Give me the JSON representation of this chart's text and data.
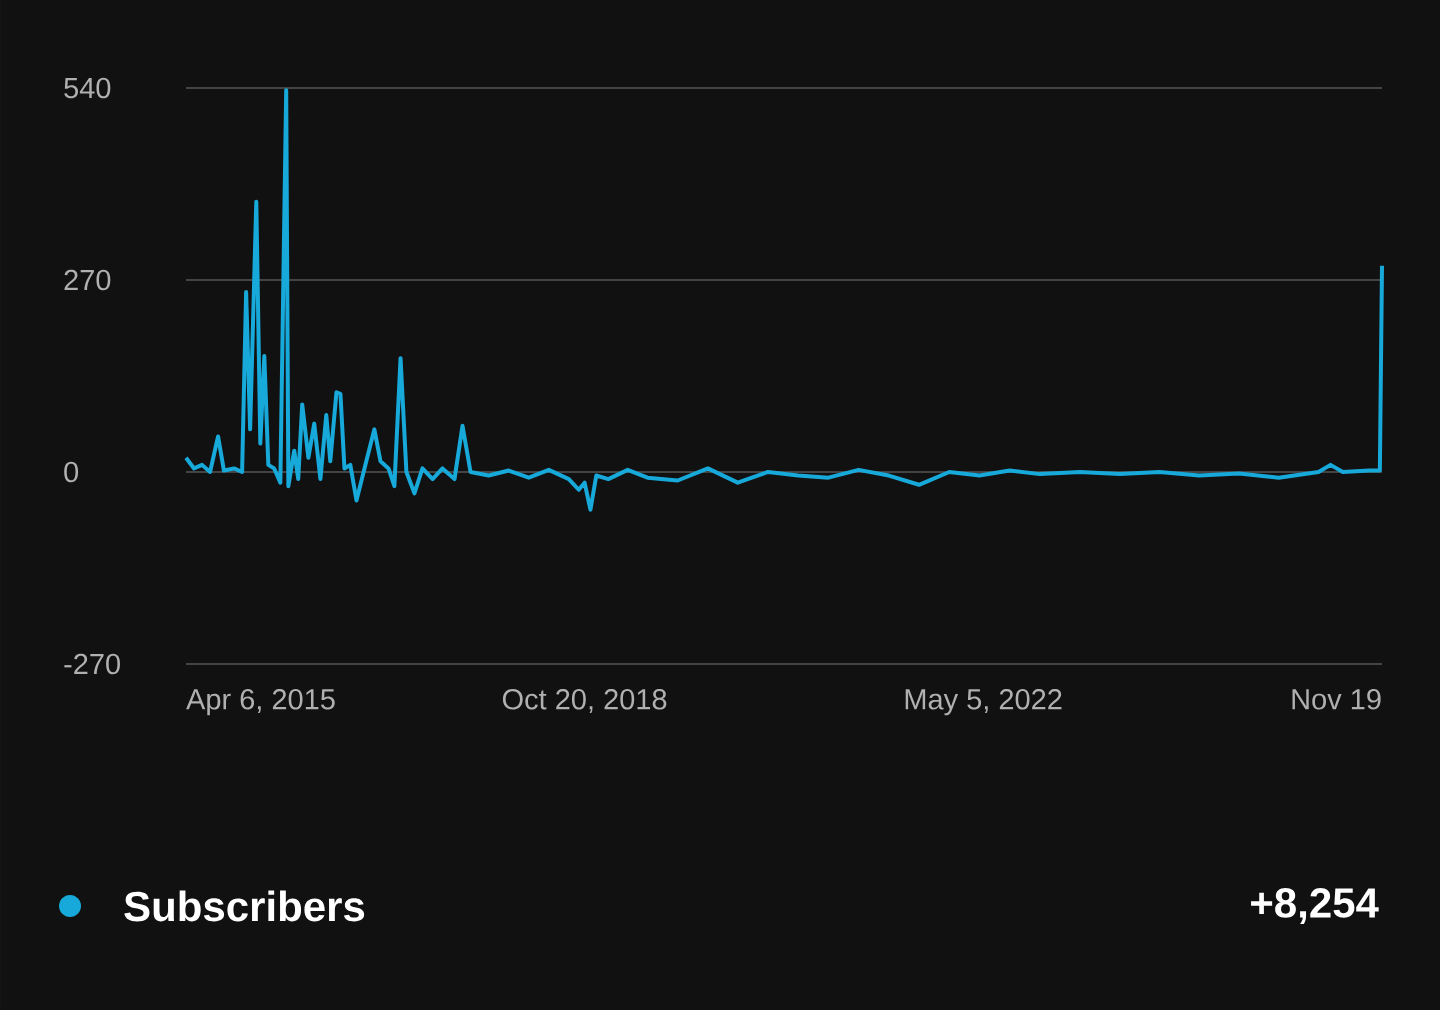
{
  "chart_data": {
    "type": "line",
    "x": [
      "2015-04-06",
      "2015-05-02",
      "2015-05-28",
      "2015-06-23",
      "2015-07-19",
      "2015-08-07",
      "2015-09-09",
      "2015-10-05",
      "2015-10-18",
      "2015-10-31",
      "2015-11-20",
      "2015-12-03",
      "2015-12-16",
      "2015-12-29",
      "2016-01-17",
      "2016-02-06",
      "2016-02-25",
      "2016-03-03",
      "2016-03-22",
      "2016-04-04",
      "2016-04-17",
      "2016-05-07",
      "2016-05-26",
      "2016-06-15",
      "2016-07-04",
      "2016-07-17",
      "2016-08-06",
      "2016-08-19",
      "2016-09-01",
      "2016-09-20",
      "2016-10-10",
      "2016-11-05",
      "2016-12-07",
      "2016-12-27",
      "2017-01-22",
      "2017-02-10",
      "2017-03-02",
      "2017-03-21",
      "2017-04-16",
      "2017-05-12",
      "2017-06-14",
      "2017-07-16",
      "2017-08-24",
      "2017-09-19",
      "2017-10-15",
      "2017-12-13",
      "2018-02-16",
      "2018-04-22",
      "2018-06-26",
      "2018-08-30",
      "2018-10-01",
      "2018-10-20",
      "2018-11-08",
      "2018-11-27",
      "2019-01-05",
      "2019-03-09",
      "2019-05-12",
      "2019-08-18",
      "2019-11-24",
      "2020-02-29",
      "2020-06-06",
      "2020-09-12",
      "2020-12-19",
      "2021-03-27",
      "2021-07-03",
      "2021-10-09",
      "2022-01-15",
      "2022-04-23",
      "2022-07-30",
      "2022-11-05",
      "2023-03-15",
      "2023-07-22",
      "2023-11-28",
      "2024-04-05",
      "2024-08-12",
      "2024-12-19",
      "2025-04-27",
      "2025-06-05",
      "2025-07-15",
      "2025-10-08",
      "2025-11-12",
      "2025-11-19"
    ],
    "series": [
      {
        "name": "Subscribers",
        "color": "#17a9d9",
        "values": [
          20,
          5,
          10,
          0,
          50,
          2,
          5,
          0,
          253,
          60,
          380,
          40,
          163,
          10,
          5,
          -15,
          537,
          -20,
          30,
          -10,
          95,
          20,
          68,
          -10,
          80,
          15,
          112,
          110,
          5,
          10,
          -40,
          5,
          60,
          15,
          5,
          -20,
          160,
          0,
          -30,
          5,
          -10,
          5,
          -10,
          65,
          0,
          -5,
          2,
          -8,
          3,
          -10,
          -25,
          -15,
          -53,
          -5,
          -10,
          3,
          -8,
          -12,
          5,
          -15,
          0,
          -5,
          -8,
          3,
          -5,
          -18,
          0,
          -5,
          2,
          -3,
          0,
          -3,
          0,
          -5,
          -2,
          -8,
          0,
          10,
          0,
          2,
          2,
          290
        ]
      }
    ],
    "xlim": [
      "2015-04-06",
      "2025-11-19"
    ],
    "xticks": [
      {
        "value": "2015-04-06",
        "label": "Apr 6, 2015"
      },
      {
        "value": "2018-10-20",
        "label": "Oct 20, 2018"
      },
      {
        "value": "2022-05-05",
        "label": "May 5, 2022"
      },
      {
        "value": "2025-11-19",
        "label": "Nov 19"
      }
    ],
    "ylim": [
      -270,
      540
    ],
    "yticks": [
      -270,
      0,
      270,
      540
    ],
    "grid": "y",
    "legend": "bottom",
    "marker": "none",
    "line_style": "solid",
    "annotations": [
      "+8,254"
    ]
  }
}
